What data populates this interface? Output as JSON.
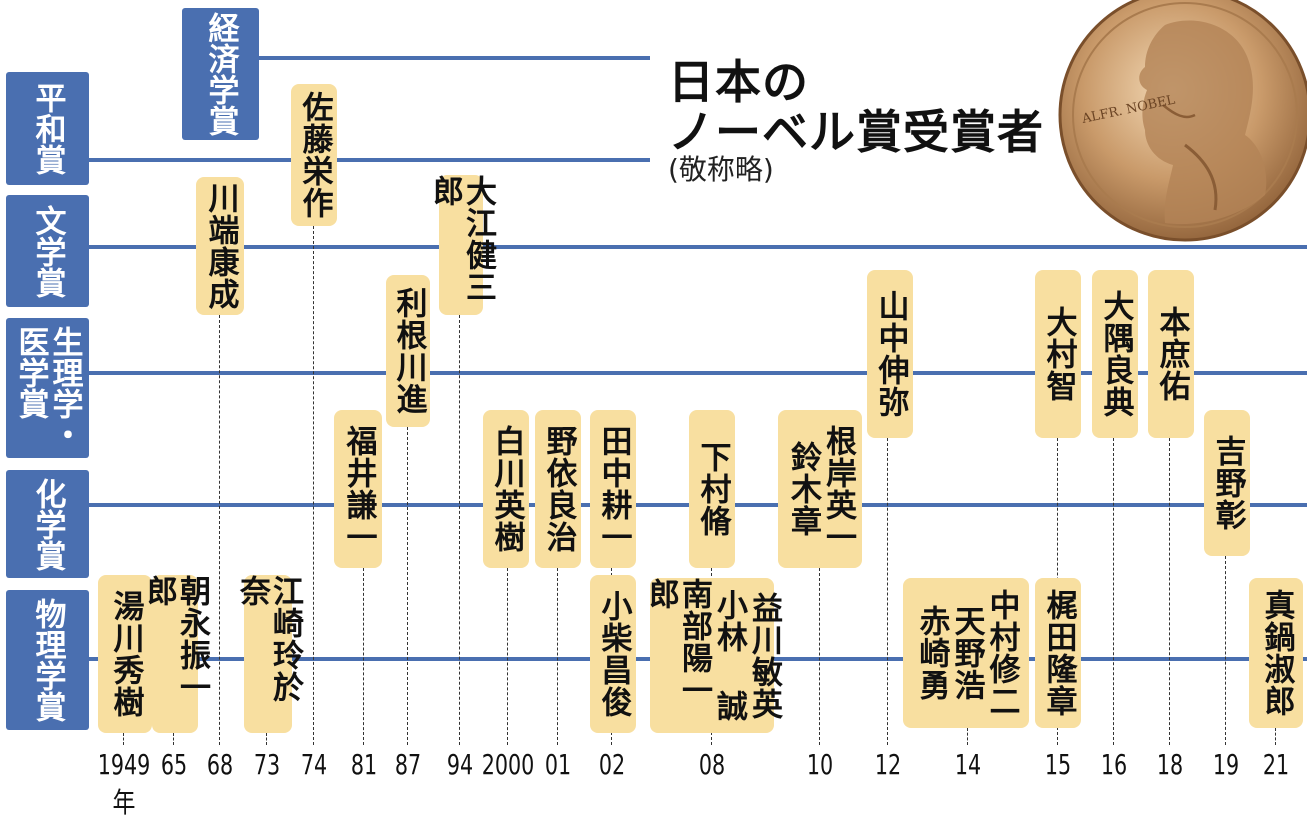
{
  "title": {
    "line1": "日本の",
    "line2": "ノーベル賞受賞者",
    "note": "(敬称略)"
  },
  "medal": {
    "inscription": "ALFR. NOBEL"
  },
  "categories": [
    {
      "id": "economics",
      "label": "経済学賞"
    },
    {
      "id": "peace",
      "label": "平和賞"
    },
    {
      "id": "literature",
      "label": "文学賞"
    },
    {
      "id": "medicine",
      "label": "生理学・医学賞",
      "column_right": "生理学・",
      "column_left": "医学賞"
    },
    {
      "id": "chemistry",
      "label": "化学賞"
    },
    {
      "id": "physics",
      "label": "物理学賞"
    }
  ],
  "years": [
    "1949年",
    "65",
    "68",
    "73",
    "74",
    "81",
    "87",
    "94",
    "2000",
    "01",
    "02",
    "08",
    "10",
    "12",
    "14",
    "15",
    "16",
    "18",
    "19",
    "21"
  ],
  "laureates": [
    {
      "year": "1949年",
      "category": "physics",
      "names": [
        "湯川秀樹"
      ]
    },
    {
      "year": "65",
      "category": "physics",
      "names": [
        "朝永振一郎"
      ]
    },
    {
      "year": "68",
      "category": "literature",
      "names": [
        "川端康成"
      ]
    },
    {
      "year": "73",
      "category": "physics",
      "names": [
        "江崎玲於奈"
      ]
    },
    {
      "year": "74",
      "category": "peace",
      "names": [
        "佐藤栄作"
      ]
    },
    {
      "year": "81",
      "category": "chemistry",
      "names": [
        "福井謙一"
      ]
    },
    {
      "year": "87",
      "category": "medicine",
      "names": [
        "利根川進"
      ]
    },
    {
      "year": "94",
      "category": "literature",
      "names": [
        "大江健三郎"
      ]
    },
    {
      "year": "2000",
      "category": "chemistry",
      "names": [
        "白川英樹"
      ]
    },
    {
      "year": "01",
      "category": "chemistry",
      "names": [
        "野依良治"
      ]
    },
    {
      "year": "02",
      "category": "chemistry",
      "names": [
        "田中耕一"
      ]
    },
    {
      "year": "02",
      "category": "physics",
      "names": [
        "小柴昌俊"
      ]
    },
    {
      "year": "08",
      "category": "chemistry",
      "names": [
        "下村脩"
      ]
    },
    {
      "year": "08",
      "category": "physics",
      "names": [
        "益川敏英",
        "小林 誠",
        "南部陽一郎"
      ]
    },
    {
      "year": "10",
      "category": "chemistry",
      "names": [
        "根岸英一",
        "鈴木章"
      ]
    },
    {
      "year": "12",
      "category": "medicine",
      "names": [
        "山中伸弥"
      ]
    },
    {
      "year": "14",
      "category": "physics",
      "names": [
        "中村修二",
        "天野浩",
        "赤崎勇"
      ]
    },
    {
      "year": "15",
      "category": "medicine",
      "names": [
        "大村智"
      ]
    },
    {
      "year": "15",
      "category": "physics",
      "names": [
        "梶田隆章"
      ]
    },
    {
      "year": "16",
      "category": "medicine",
      "names": [
        "大隅良典"
      ]
    },
    {
      "year": "18",
      "category": "medicine",
      "names": [
        "本庶佑"
      ]
    },
    {
      "year": "19",
      "category": "chemistry",
      "names": [
        "吉野彰"
      ]
    },
    {
      "year": "21",
      "category": "physics",
      "names": [
        "真鍋淑郎"
      ]
    }
  ],
  "colors": {
    "category_blue": "#4a6fb0",
    "pill_fill": "#f8dfa0"
  }
}
